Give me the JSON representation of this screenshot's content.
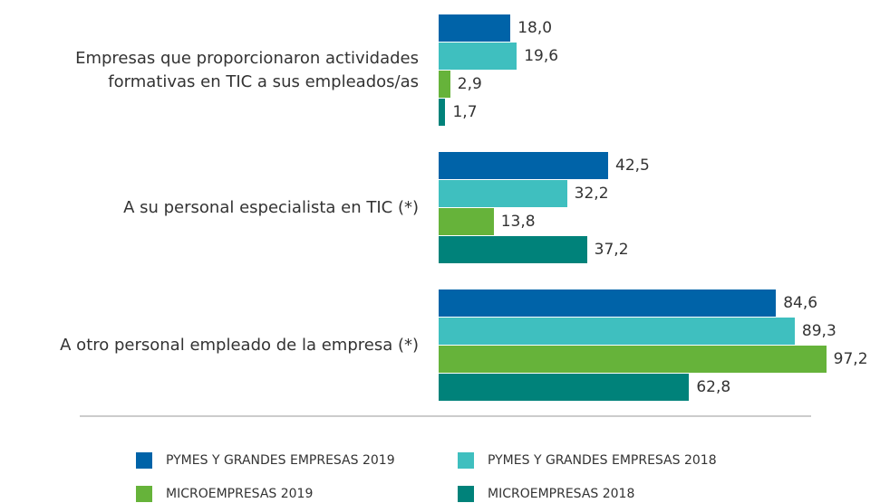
{
  "chart_data": {
    "type": "bar",
    "orientation": "horizontal",
    "categories": [
      "Empresas que proporcionaron actividades formativas en TIC a sus empleados/as",
      "A su personal especialista en TIC (*)",
      "A otro personal empleado de la empresa (*)"
    ],
    "series": [
      {
        "name": "PYMES Y GRANDES EMPRESAS 2019",
        "color": "#0063a8",
        "values": [
          18.0,
          42.5,
          84.6
        ],
        "value_labels": [
          "18,0",
          "42,5",
          "84,6"
        ]
      },
      {
        "name": "PYMES Y GRANDES EMPRESAS 2018",
        "color": "#3fbfbf",
        "values": [
          19.6,
          32.2,
          89.3
        ],
        "value_labels": [
          "19,6",
          "32,2",
          "89,3"
        ]
      },
      {
        "name": "MICROEMPRESAS 2019",
        "color": "#66b33a",
        "values": [
          2.9,
          13.8,
          97.2
        ],
        "value_labels": [
          "2,9",
          "13,8",
          "97,2"
        ]
      },
      {
        "name": "MICROEMPRESAS 2018",
        "color": "#00827a",
        "values": [
          1.7,
          37.2,
          62.8
        ],
        "value_labels": [
          "1,7",
          "37,2",
          "62,8"
        ]
      }
    ]
  }
}
